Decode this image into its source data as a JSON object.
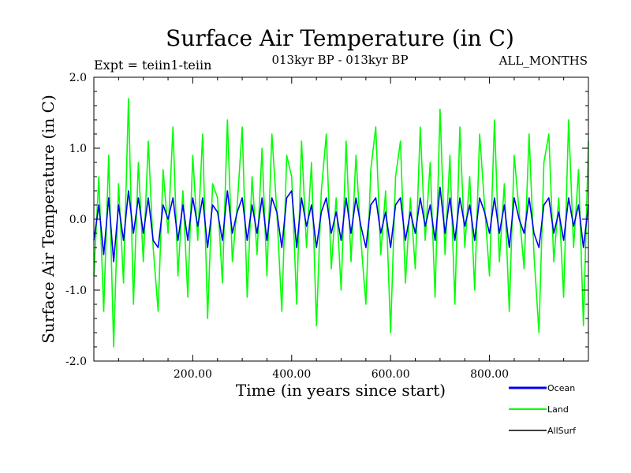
{
  "chart_data": {
    "type": "line",
    "title": "Surface Air Temperature (in C)",
    "subtitle": "013kyr BP - 013kyr BP",
    "left_note": "Expt = teiin1-teiin",
    "right_note": "ALL_MONTHS",
    "xlabel": "Time (in years since start)",
    "ylabel": "Surface Air Temperature (in C)",
    "xlim": [
      0,
      1000
    ],
    "ylim": [
      -2.0,
      2.0
    ],
    "xticks": [
      200,
      400,
      600,
      800
    ],
    "xtick_labels": [
      "200.00",
      "400.00",
      "600.00",
      "800.00"
    ],
    "yticks": [
      2.0,
      1.0,
      0.0,
      -1.0,
      -2.0
    ],
    "ytick_labels": [
      "2.0",
      "1.0",
      "0.0",
      "-1.0",
      "-2.0"
    ],
    "grid": false,
    "legend_position": "bottom-right",
    "series": [
      {
        "name": "Land",
        "color": "#00ff00",
        "x": [
          0,
          10,
          20,
          30,
          40,
          50,
          60,
          70,
          80,
          90,
          100,
          110,
          120,
          130,
          140,
          150,
          160,
          170,
          180,
          190,
          200,
          210,
          220,
          230,
          240,
          250,
          260,
          270,
          280,
          290,
          300,
          310,
          320,
          330,
          340,
          350,
          360,
          370,
          380,
          390,
          400,
          410,
          420,
          430,
          440,
          450,
          460,
          470,
          480,
          490,
          500,
          510,
          520,
          530,
          540,
          550,
          560,
          570,
          580,
          590,
          600,
          610,
          620,
          630,
          640,
          650,
          660,
          670,
          680,
          690,
          700,
          710,
          720,
          730,
          740,
          750,
          760,
          770,
          780,
          790,
          800,
          810,
          820,
          830,
          840,
          850,
          860,
          870,
          880,
          890,
          900,
          910,
          920,
          930,
          940,
          950,
          960,
          970,
          980,
          990,
          1000
        ],
        "values": [
          -0.8,
          0.6,
          -1.3,
          0.9,
          -1.8,
          0.5,
          -0.9,
          1.7,
          -1.2,
          0.8,
          -0.6,
          1.1,
          -0.4,
          -1.3,
          0.7,
          -0.2,
          1.3,
          -0.8,
          0.4,
          -1.1,
          0.9,
          -0.3,
          1.2,
          -1.4,
          0.5,
          0.3,
          -0.9,
          1.4,
          -0.6,
          0.2,
          1.3,
          -1.1,
          0.6,
          -0.5,
          1.0,
          -0.8,
          1.2,
          0.1,
          -1.3,
          0.9,
          0.6,
          -1.2,
          1.1,
          -0.4,
          0.8,
          -1.5,
          0.4,
          1.2,
          -0.7,
          0.3,
          -1.0,
          1.1,
          -0.6,
          0.9,
          -0.3,
          -1.2,
          0.7,
          1.3,
          -0.5,
          0.4,
          -1.6,
          0.6,
          1.1,
          -0.9,
          0.3,
          -0.7,
          1.3,
          -0.3,
          0.8,
          -1.1,
          1.55,
          -0.5,
          0.9,
          -1.2,
          1.3,
          -0.4,
          0.6,
          -1.0,
          1.2,
          0.2,
          -0.8,
          1.4,
          -0.6,
          0.5,
          -1.3,
          0.9,
          0.1,
          -0.7,
          1.2,
          -0.5,
          -1.6,
          0.8,
          1.2,
          -0.6,
          0.3,
          -1.1,
          1.4,
          -0.4,
          0.7,
          -1.5,
          1.1
        ]
      },
      {
        "name": "Ocean",
        "color": "#0000ee",
        "x": [
          0,
          10,
          20,
          30,
          40,
          50,
          60,
          70,
          80,
          90,
          100,
          110,
          120,
          130,
          140,
          150,
          160,
          170,
          180,
          190,
          200,
          210,
          220,
          230,
          240,
          250,
          260,
          270,
          280,
          290,
          300,
          310,
          320,
          330,
          340,
          350,
          360,
          370,
          380,
          390,
          400,
          410,
          420,
          430,
          440,
          450,
          460,
          470,
          480,
          490,
          500,
          510,
          520,
          530,
          540,
          550,
          560,
          570,
          580,
          590,
          600,
          610,
          620,
          630,
          640,
          650,
          660,
          670,
          680,
          690,
          700,
          710,
          720,
          730,
          740,
          750,
          760,
          770,
          780,
          790,
          800,
          810,
          820,
          830,
          840,
          850,
          860,
          870,
          880,
          890,
          900,
          910,
          920,
          930,
          940,
          950,
          960,
          970,
          980,
          990,
          1000
        ],
        "values": [
          -0.3,
          0.2,
          -0.5,
          0.3,
          -0.6,
          0.2,
          -0.3,
          0.4,
          -0.2,
          0.3,
          -0.2,
          0.3,
          -0.3,
          -0.4,
          0.2,
          0.0,
          0.3,
          -0.3,
          0.2,
          -0.3,
          0.3,
          -0.1,
          0.3,
          -0.4,
          0.2,
          0.1,
          -0.3,
          0.4,
          -0.2,
          0.1,
          0.3,
          -0.3,
          0.2,
          -0.2,
          0.3,
          -0.3,
          0.3,
          0.1,
          -0.4,
          0.3,
          0.4,
          -0.4,
          0.3,
          -0.1,
          0.2,
          -0.4,
          0.1,
          0.3,
          -0.2,
          0.1,
          -0.3,
          0.3,
          -0.2,
          0.3,
          -0.1,
          -0.4,
          0.2,
          0.3,
          -0.2,
          0.1,
          -0.4,
          0.2,
          0.3,
          -0.3,
          0.1,
          -0.2,
          0.3,
          -0.1,
          0.2,
          -0.3,
          0.45,
          -0.2,
          0.3,
          -0.3,
          0.3,
          -0.1,
          0.2,
          -0.3,
          0.3,
          0.1,
          -0.2,
          0.3,
          -0.2,
          0.2,
          -0.4,
          0.3,
          0.0,
          -0.2,
          0.3,
          -0.2,
          -0.4,
          0.2,
          0.3,
          -0.2,
          0.1,
          -0.3,
          0.3,
          -0.1,
          0.2,
          -0.4,
          0.2
        ]
      }
    ]
  },
  "legend": {
    "items": [
      {
        "label": "Ocean",
        "color": "#0000ee"
      },
      {
        "label": "Land",
        "color": "#00ff00"
      },
      {
        "label": "AllSurf",
        "color": "#000000"
      }
    ]
  }
}
